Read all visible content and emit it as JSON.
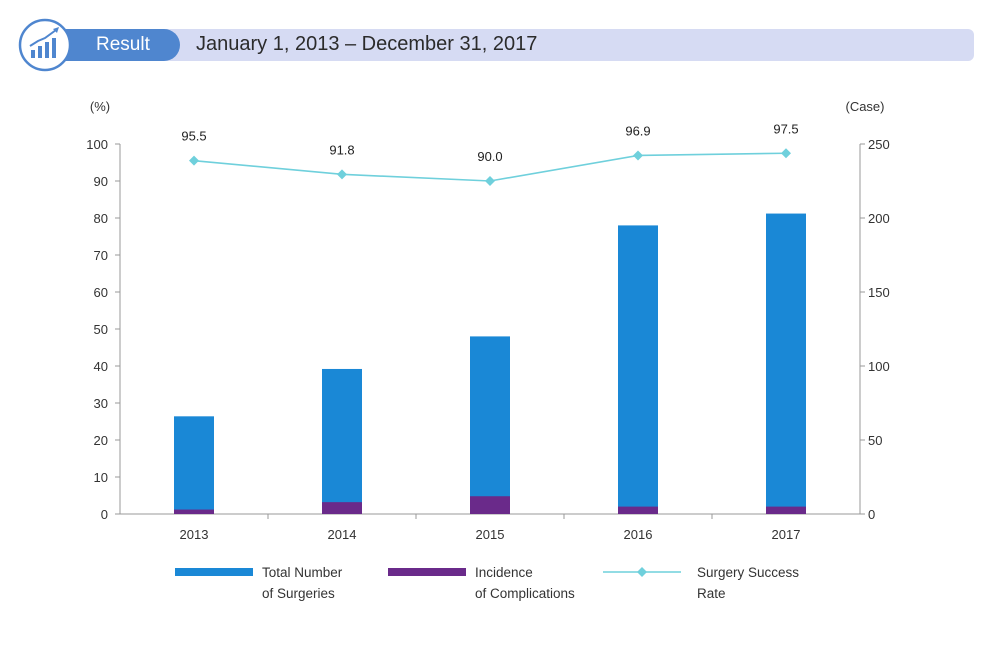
{
  "header": {
    "result_label": "Result",
    "date_range": "January 1, 2013 – December 31, 2017"
  },
  "icons": {
    "logo": "growth-chart-icon"
  },
  "colors": {
    "bar_total": "#1a88d6",
    "bar_complication": "#6a2a8a",
    "line_success": "#6fd0dc",
    "header_band": "#d6dbf3",
    "header_tab": "#4f86cf"
  },
  "chart_data": {
    "type": "bar",
    "categories": [
      "2013",
      "2014",
      "2015",
      "2016",
      "2017"
    ],
    "left_axis": {
      "unit_label": "(%)",
      "range": [
        0,
        100
      ],
      "ticks": [
        "0",
        "10",
        "20",
        "30",
        "40",
        "50",
        "60",
        "70",
        "80",
        "90",
        "100"
      ]
    },
    "right_axis": {
      "unit_label": "(Case)",
      "range": [
        0,
        250
      ],
      "ticks": [
        "0",
        "50",
        "100",
        "150",
        "200",
        "250"
      ]
    },
    "series": [
      {
        "name": "Total Number of Surgeries",
        "legend_lines": [
          "Total Number",
          "of Surgeries"
        ],
        "type": "bar",
        "axis": "right",
        "values": [
          66,
          98,
          120,
          195,
          203
        ]
      },
      {
        "name": "Incidence of Complications",
        "legend_lines": [
          "Incidence",
          "of Complications"
        ],
        "type": "bar",
        "axis": "right",
        "values": [
          3,
          8,
          12,
          5,
          5
        ]
      },
      {
        "name": "Surgery Success Rate",
        "legend_lines": [
          "Surgery Success",
          "Rate"
        ],
        "type": "line",
        "axis": "left",
        "values": [
          95.5,
          91.8,
          90.0,
          96.9,
          97.5
        ],
        "labels": [
          "95.5",
          "91.8",
          "90.0",
          "96.9",
          "97.5"
        ]
      }
    ],
    "legend_position": "bottom",
    "grid": false
  }
}
